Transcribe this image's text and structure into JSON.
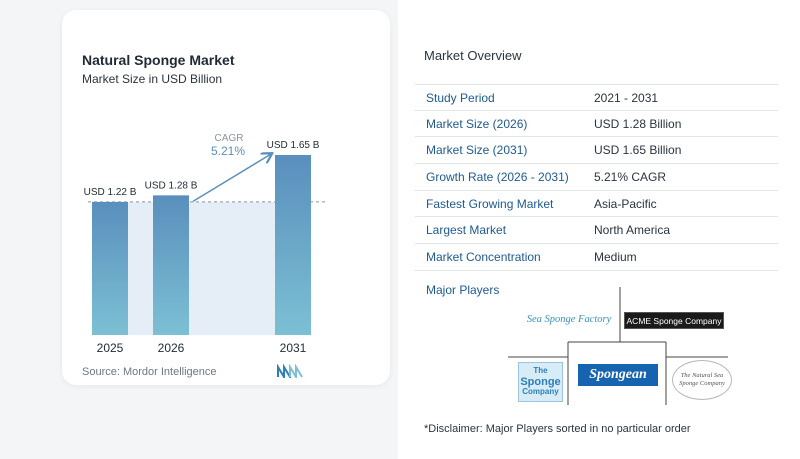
{
  "chart_data": {
    "type": "bar",
    "title": "Natural Sponge Market",
    "subtitle": "Market Size in USD Billion",
    "categories": [
      "2025",
      "2026",
      "2031"
    ],
    "values": [
      1.22,
      1.28,
      1.65
    ],
    "data_labels": [
      "USD 1.22 B",
      "USD 1.28 B",
      "USD 1.65 B"
    ],
    "cagr_label": "CAGR",
    "cagr_value": "5.21%",
    "ylim": [
      0,
      1.7
    ],
    "grid": false,
    "source": "Source: Mordor Intelligence",
    "colors": {
      "bar_top": "#5a8fbd",
      "bar_bottom": "#7cc0d4",
      "shade": "#e5eef6",
      "arrow": "#5a8fbd"
    }
  },
  "overview": {
    "title": "Market Overview",
    "rows": [
      {
        "label": "Study Period",
        "value": "2021 - 2031"
      },
      {
        "label": "Market Size (2026)",
        "value": "USD 1.28 Billion"
      },
      {
        "label": "Market Size (2031)",
        "value": "USD 1.65 Billion"
      },
      {
        "label": "Growth Rate (2026 - 2031)",
        "value": "5.21% CAGR"
      },
      {
        "label": "Fastest Growing Market",
        "value": "Asia-Pacific"
      },
      {
        "label": "Largest Market",
        "value": "North America"
      },
      {
        "label": "Market Concentration",
        "value": "Medium"
      }
    ],
    "players_label": "Major Players",
    "players": [
      {
        "name": "Sea Sponge Factory"
      },
      {
        "name": "ACME Sponge Company"
      },
      {
        "name_line1": "The",
        "name_line2": "Sponge",
        "name_line3": "Company"
      },
      {
        "name": "Spongean"
      },
      {
        "name": "The Natural Sea Sponge Company"
      }
    ],
    "disclaimer": "*Disclaimer: Major Players sorted in no particular order"
  }
}
